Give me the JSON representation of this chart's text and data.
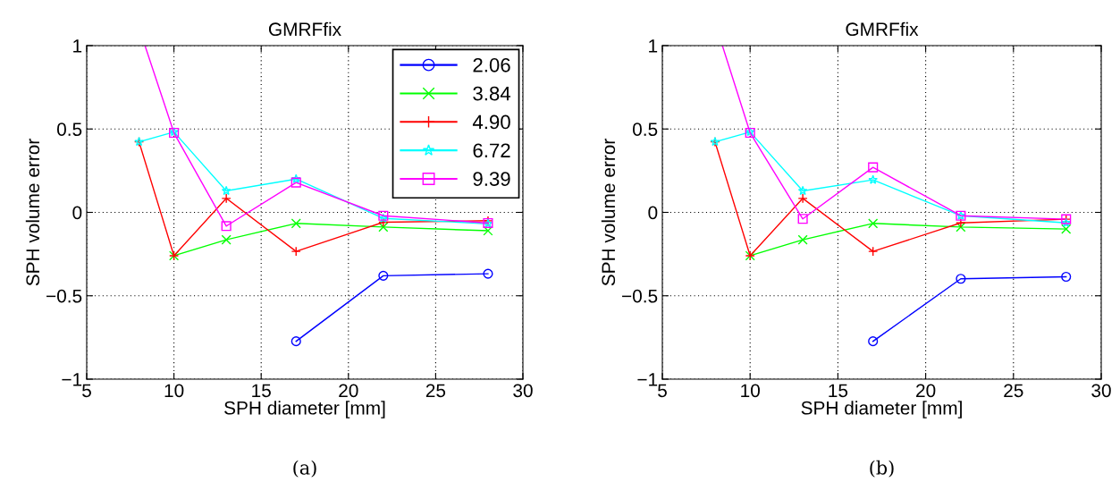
{
  "chart_data": [
    {
      "type": "line",
      "title": "GMRFfix",
      "xlabel": "SPH diameter [mm]",
      "ylabel": "SPH volume error",
      "annotations": [
        "(a)"
      ],
      "x": [
        8,
        10,
        13,
        17,
        22,
        28
      ],
      "xlim": [
        5,
        30
      ],
      "xticks": [
        5,
        10,
        15,
        20,
        25,
        30
      ],
      "ylim": [
        -1,
        1
      ],
      "yticks": [
        -1,
        -0.5,
        0,
        0.5,
        1
      ],
      "grid": true,
      "line_style": "solid",
      "legend": "top right",
      "series": [
        {
          "name": "2.06",
          "color": "#0000ff",
          "marker": "circle",
          "values": [
            null,
            null,
            null,
            -0.773,
            -0.38,
            -0.368
          ]
        },
        {
          "name": "3.84",
          "color": "#00ff00",
          "marker": "cross",
          "values": [
            null,
            -0.26,
            -0.164,
            -0.066,
            -0.088,
            -0.11
          ]
        },
        {
          "name": "4.90",
          "color": "#ff0000",
          "marker": "plus",
          "values": [
            0.423,
            -0.26,
            0.084,
            -0.234,
            -0.059,
            -0.05
          ]
        },
        {
          "name": "6.72",
          "color": "#00ffff",
          "marker": "star",
          "values": [
            0.423,
            0.482,
            0.129,
            0.2,
            -0.036,
            -0.068
          ]
        },
        {
          "name": "9.39",
          "color": "#ff00ff",
          "marker": "square",
          "x": [
            8.34,
            10,
            13,
            17,
            22,
            28
          ],
          "values": [
            1,
            0.477,
            -0.082,
            0.179,
            -0.02,
            -0.064
          ]
        }
      ]
    },
    {
      "type": "line",
      "title": "GMRFfix",
      "xlabel": "SPH diameter [mm]",
      "ylabel": "SPH volume error",
      "annotations": [
        "(b)"
      ],
      "x": [
        8,
        10,
        13,
        17,
        22,
        28
      ],
      "xlim": [
        5,
        30
      ],
      "xticks": [
        5,
        10,
        15,
        20,
        25,
        30
      ],
      "ylim": [
        -1,
        1
      ],
      "yticks": [
        -1,
        -0.5,
        0,
        0.5,
        1
      ],
      "grid": true,
      "line_style": "solid",
      "series": [
        {
          "color": "#0000ff",
          "marker": "circle",
          "values": [
            null,
            null,
            null,
            -0.773,
            -0.398,
            -0.386
          ]
        },
        {
          "color": "#00ff00",
          "marker": "cross",
          "values": [
            null,
            -0.26,
            -0.164,
            -0.066,
            -0.088,
            -0.1
          ]
        },
        {
          "color": "#ff0000",
          "marker": "plus",
          "values": [
            0.423,
            -0.26,
            0.084,
            -0.234,
            -0.063,
            -0.041
          ]
        },
        {
          "color": "#00ffff",
          "marker": "star",
          "values": [
            0.423,
            0.482,
            0.129,
            0.195,
            -0.02,
            -0.063
          ]
        },
        {
          "color": "#ff00ff",
          "marker": "square",
          "x": [
            8.42,
            10,
            13,
            17,
            22,
            28
          ],
          "values": [
            1,
            0.477,
            -0.039,
            0.27,
            -0.02,
            -0.041
          ]
        }
      ]
    }
  ]
}
